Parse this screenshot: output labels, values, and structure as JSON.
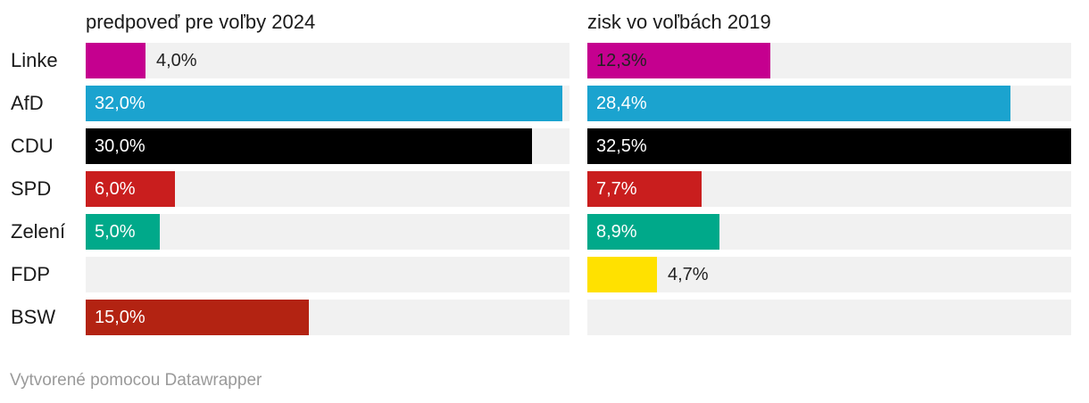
{
  "chart_data": {
    "type": "bar",
    "orientation": "horizontal",
    "categories": [
      "Linke",
      "AfD",
      "CDU",
      "SPD",
      "Zelení",
      "FDP",
      "BSW"
    ],
    "colors": [
      "#c5008f",
      "#1ba3cf",
      "#000000",
      "#c91e1e",
      "#00a98a",
      "#ffe100",
      "#b32312"
    ],
    "value_text_colors": [
      "#222222",
      "#ffffff",
      "#ffffff",
      "#ffffff",
      "#ffffff",
      "#222222",
      "#ffffff"
    ],
    "xlim": [
      0,
      32.5
    ],
    "series": [
      {
        "name": "predpoveď pre voľby 2024",
        "values": [
          4.0,
          32.0,
          30.0,
          6.0,
          5.0,
          null,
          15.0
        ],
        "labels": [
          "4,0%",
          "32,0%",
          "30,0%",
          "6,0%",
          "5,0%",
          "",
          "15,0%"
        ]
      },
      {
        "name": "zisk vo voľbách 2019",
        "values": [
          12.3,
          28.4,
          32.5,
          7.7,
          8.9,
          4.7,
          null
        ],
        "labels": [
          "12,3%",
          "28,4%",
          "32,5%",
          "7,7%",
          "8,9%",
          "4,7%",
          ""
        ]
      }
    ],
    "track_color": "#f1f1f1"
  },
  "footer": {
    "credit": "Vytvorené pomocou Datawrapper"
  }
}
